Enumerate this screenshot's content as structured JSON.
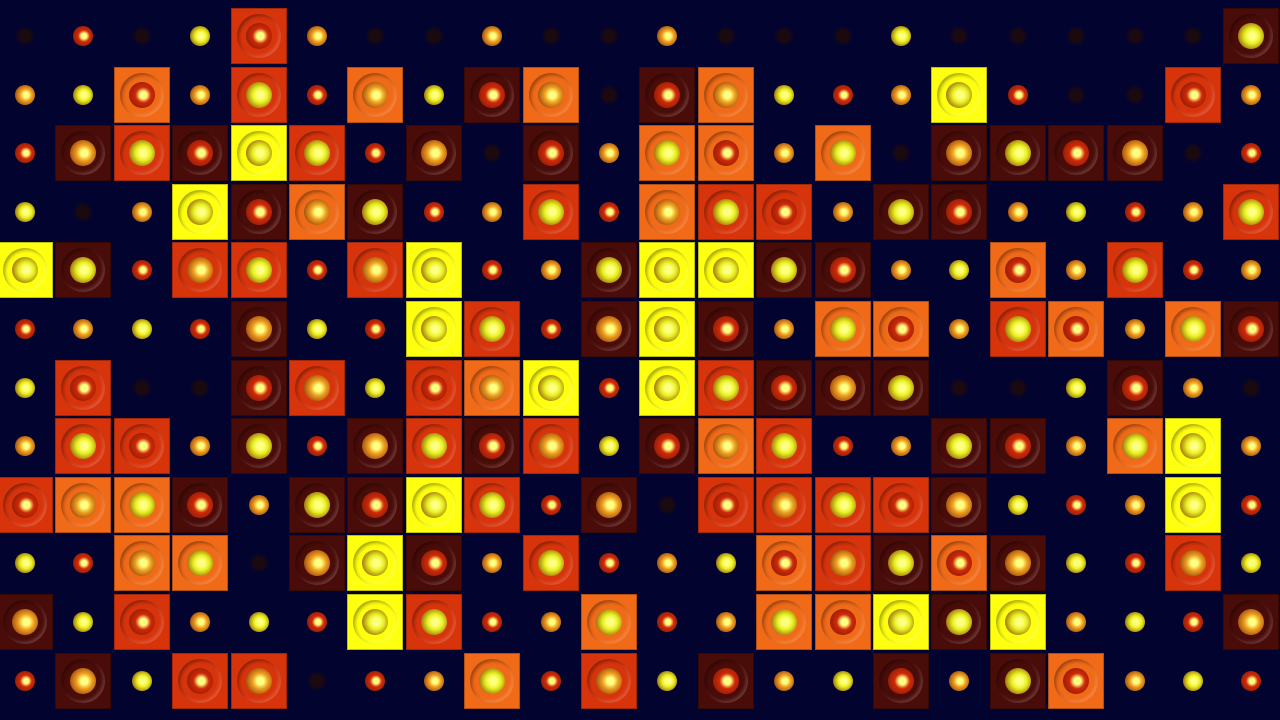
{
  "scene": {
    "description_type": "abstract-tile-grid",
    "palette": {
      "background": "#03032f",
      "red": "#d8340c",
      "orange": "#f06a18",
      "yellow": "#ffff10",
      "brown": "#4a0c08",
      "dot_yellow": "#e8f020",
      "dot_red": "#d02808"
    }
  }
}
